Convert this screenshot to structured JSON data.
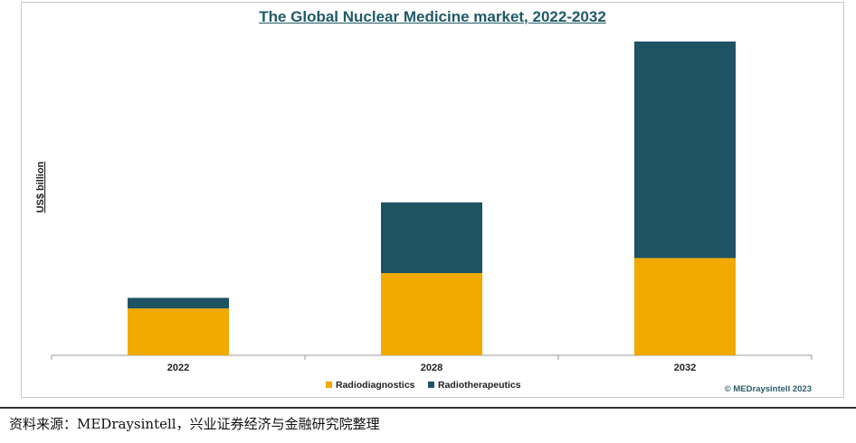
{
  "chart_data": {
    "type": "bar",
    "stacked": true,
    "title": "The Global Nuclear Medicine market, 2022-2032",
    "ylabel": "US$ billion",
    "xlabel": "",
    "categories": [
      "2022",
      "2028",
      "2032"
    ],
    "series": [
      {
        "name": "Radiodiagnostics",
        "color": "#f2a900",
        "values": [
          5.3,
          9.3,
          11.0
        ]
      },
      {
        "name": "Radiotherapeutics",
        "color": "#1e5364",
        "values": [
          1.2,
          8.0,
          24.5
        ]
      }
    ],
    "ylim": [
      0,
      36
    ],
    "grid": false,
    "legend": "bottom-center",
    "copyright": "© MEDraysintell 2023"
  },
  "source": "资料来源：MEDraysintell，兴业证券经济与金融研究院整理"
}
